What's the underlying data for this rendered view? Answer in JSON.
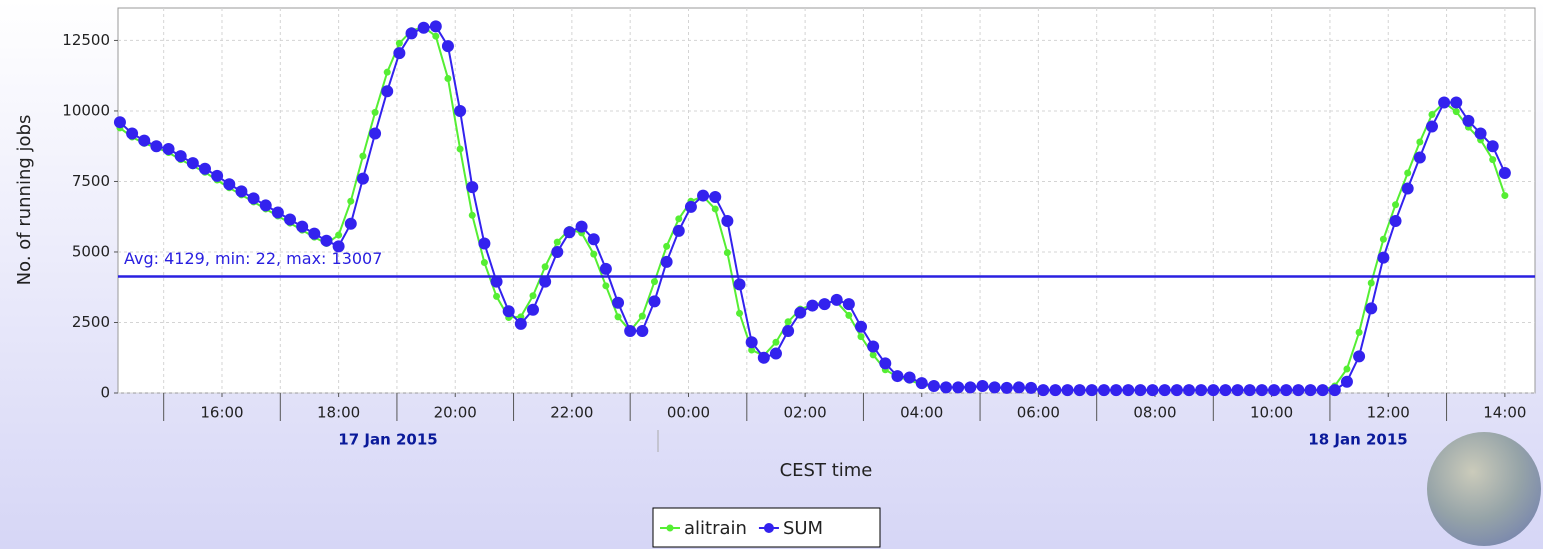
{
  "chart_data": {
    "type": "line",
    "y_label": "No. of running jobs",
    "x_label": "CEST time",
    "date_labels": [
      "17 Jan 2015",
      "18 Jan 2015"
    ],
    "avg_line": {
      "value": 4129,
      "label": "Avg: 4129, min: 22, max: 13007",
      "color": "#2a20e0"
    },
    "xlim": [
      853,
      2311
    ],
    "ylim": [
      0,
      13650
    ],
    "xticks": [
      {
        "value": 960,
        "label": "16:00"
      },
      {
        "value": 1080,
        "label": "18:00"
      },
      {
        "value": 1200,
        "label": "20:00"
      },
      {
        "value": 1320,
        "label": "22:00"
      },
      {
        "value": 1440,
        "label": "00:00"
      },
      {
        "value": 1560,
        "label": "02:00"
      },
      {
        "value": 1680,
        "label": "04:00"
      },
      {
        "value": 1800,
        "label": "06:00"
      },
      {
        "value": 1920,
        "label": "08:00"
      },
      {
        "value": 2040,
        "label": "10:00"
      },
      {
        "value": 2160,
        "label": "12:00"
      },
      {
        "value": 2280,
        "label": "14:00"
      }
    ],
    "xminorticks": [
      900,
      1020,
      1140,
      1260,
      1380,
      1500,
      1620,
      1740,
      1860,
      1980,
      2100,
      2220
    ],
    "yticks": [
      0,
      2500,
      5000,
      7500,
      10000,
      12500
    ],
    "grid": true,
    "legend": "bottom",
    "x": [
      855,
      867.5,
      880,
      892.5,
      905,
      917.5,
      930,
      942.5,
      955,
      967.5,
      980,
      992.5,
      1005,
      1017.5,
      1030,
      1042.5,
      1055,
      1067.5,
      1080,
      1092.5,
      1105,
      1117.5,
      1130,
      1142.5,
      1155,
      1167.5,
      1180,
      1192.5,
      1205,
      1217.5,
      1230,
      1242.5,
      1255,
      1267.5,
      1280,
      1292.5,
      1305,
      1317.5,
      1330,
      1342.5,
      1355,
      1367.5,
      1380,
      1392.5,
      1405,
      1417.5,
      1430,
      1442.5,
      1455,
      1467.5,
      1480,
      1492.5,
      1505,
      1517.5,
      1530,
      1542.5,
      1555,
      1567.5,
      1580,
      1592.5,
      1605,
      1617.5,
      1630,
      1642.5,
      1655,
      1667.5,
      1680,
      1692.5,
      1705,
      1717.5,
      1730,
      1742.5,
      1755,
      1767.5,
      1780,
      1792.5,
      1805,
      1817.5,
      1830,
      1842.5,
      1855,
      1867.5,
      1880,
      1892.5,
      1905,
      1917.5,
      1930,
      1942.5,
      1955,
      1967.5,
      1980,
      1992.5,
      2005,
      2017.5,
      2030,
      2042.5,
      2055,
      2067.5,
      2080,
      2092.5,
      2105,
      2117.5,
      2130,
      2142.5,
      2155,
      2167.5,
      2180,
      2192.5,
      2205,
      2217.5,
      2230,
      2242.5,
      2255,
      2267.5,
      2280
    ],
    "series": [
      {
        "name": "alitrain",
        "color": "#55ee33",
        "values": [
          9400,
          9075,
          8850,
          8700,
          8525,
          8275,
          8050,
          7825,
          7550,
          7275,
          7025,
          6775,
          6525,
          6275,
          6025,
          5775,
          5525,
          5300,
          5600,
          6800,
          8400,
          9950,
          11375,
          12400,
          12850,
          12975,
          12650,
          11150,
          8650,
          6300,
          4625,
          3425,
          2675,
          2700,
          3450,
          4475,
          5350,
          5800,
          5675,
          4925,
          3800,
          2700,
          2200,
          2725,
          3950,
          5200,
          6175,
          6800,
          6975,
          6525,
          4975,
          2825,
          1525,
          1325,
          1800,
          2525,
          2975,
          3125,
          3225,
          3225,
          2750,
          2000,
          1350,
          825,
          575,
          450,
          300,
          225,
          200,
          200,
          225,
          225,
          190,
          190,
          190,
          140,
          100,
          100,
          100,
          100,
          100,
          100,
          100,
          100,
          100,
          100,
          100,
          100,
          100,
          100,
          100,
          100,
          100,
          100,
          100,
          100,
          100,
          100,
          100,
          100,
          250,
          850,
          2150,
          3900,
          5450,
          6675,
          7800,
          8900,
          9875,
          10300,
          9975,
          9425,
          8975,
          8275,
          7000
        ]
      },
      {
        "name": "SUM",
        "color": "#3322ee",
        "values": [
          9600,
          9200,
          8950,
          8750,
          8650,
          8400,
          8150,
          7950,
          7700,
          7400,
          7150,
          6900,
          6650,
          6400,
          6150,
          5900,
          5650,
          5400,
          5200,
          6000,
          7600,
          9200,
          10700,
          12050,
          12750,
          12950,
          13000,
          12300,
          10000,
          7300,
          5300,
          3950,
          2900,
          2450,
          2950,
          3950,
          5000,
          5700,
          5900,
          5450,
          4400,
          3200,
          2200,
          2200,
          3250,
          4650,
          5750,
          6600,
          7000,
          6950,
          6100,
          3850,
          1800,
          1250,
          1400,
          2200,
          2850,
          3100,
          3150,
          3300,
          3150,
          2350,
          1650,
          1050,
          600,
          550,
          350,
          250,
          200,
          200,
          200,
          250,
          200,
          180,
          200,
          180,
          100,
          100,
          100,
          100,
          100,
          100,
          100,
          100,
          100,
          100,
          100,
          100,
          100,
          100,
          100,
          100,
          100,
          100,
          100,
          100,
          100,
          100,
          100,
          100,
          100,
          400,
          1300,
          3000,
          4800,
          6100,
          7250,
          8350,
          9450,
          10300,
          10300,
          9650,
          9200,
          8750,
          7800
        ]
      }
    ]
  }
}
